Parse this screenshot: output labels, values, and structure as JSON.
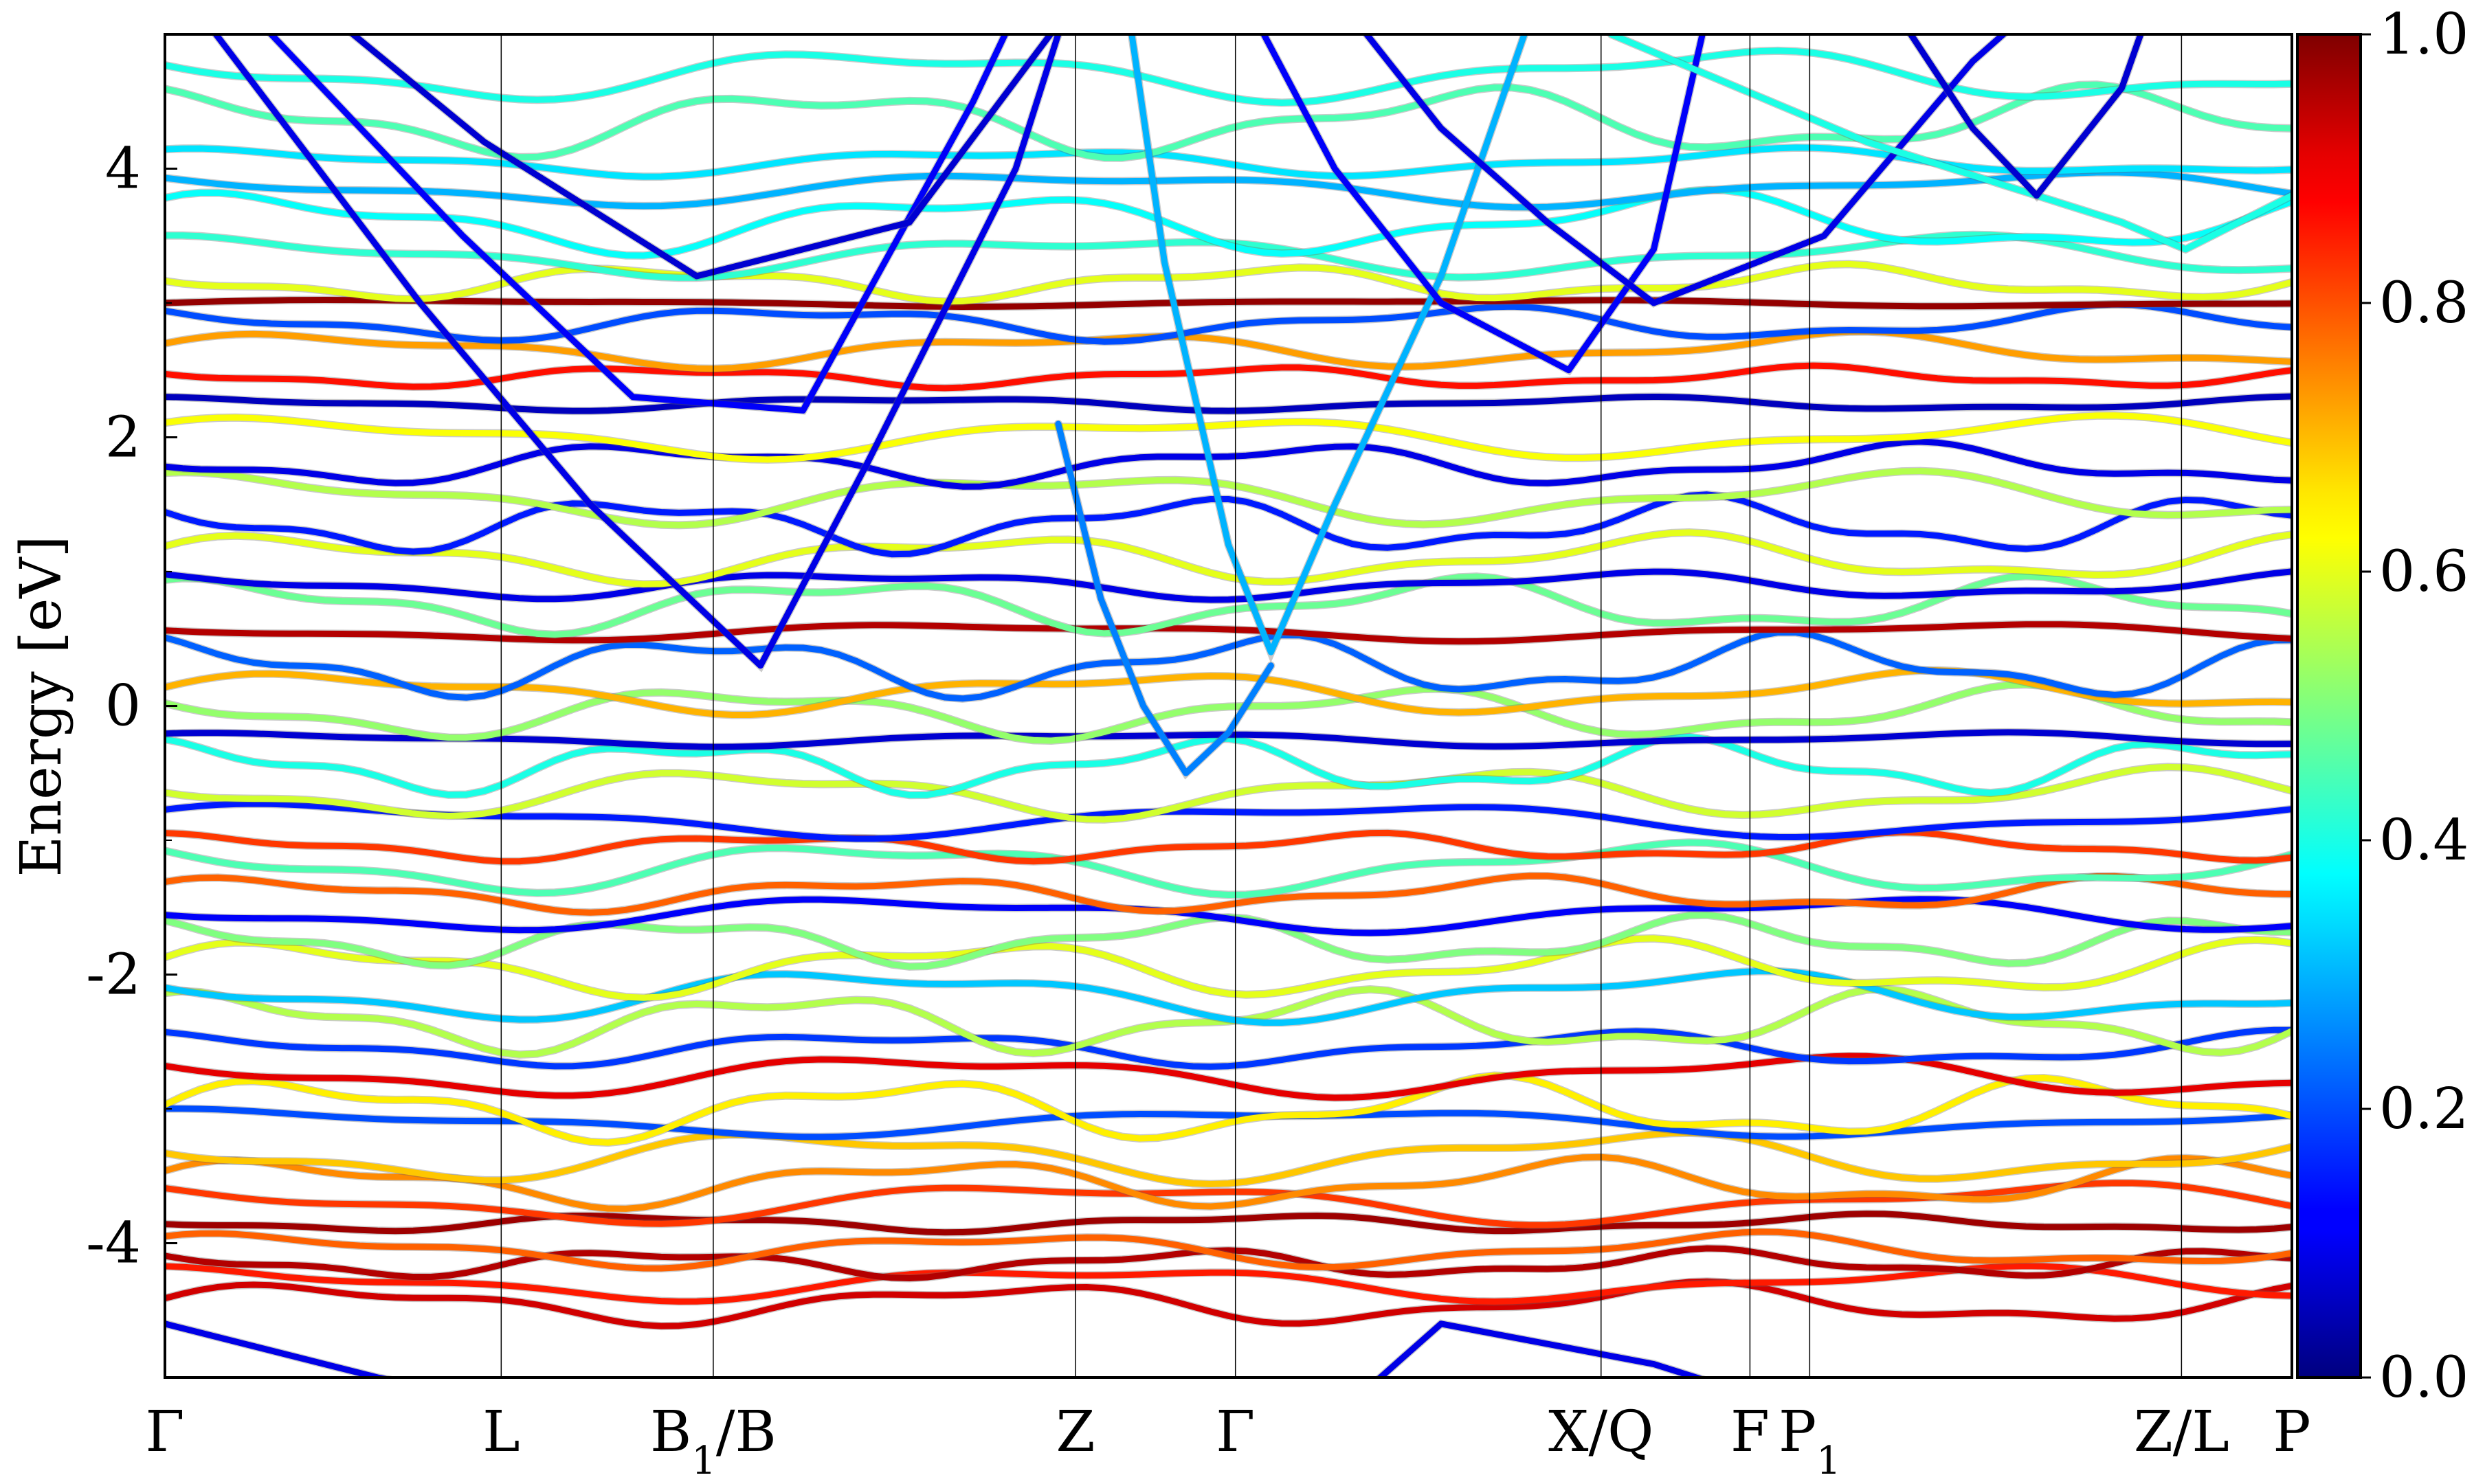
{
  "chart_data": {
    "type": "line",
    "title": "",
    "xlabel": "",
    "ylabel": "Energy [eV]",
    "ylim": [
      -5,
      5
    ],
    "yticks": [
      "-4",
      "-2",
      "0",
      "2",
      "4"
    ],
    "grid": false,
    "legend": "none",
    "high_symmetry_points": [
      {
        "label": "Γ",
        "sub": "",
        "tail": "",
        "k": 0.0
      },
      {
        "label": "L",
        "sub": "",
        "tail": "",
        "k": 0.1581
      },
      {
        "label": "B",
        "sub": "1",
        "tail": "/B",
        "k": 0.2578
      },
      {
        "label": "Z",
        "sub": "",
        "tail": "",
        "k": 0.4281
      },
      {
        "label": "Γ",
        "sub": "",
        "tail": "",
        "k": 0.5033
      },
      {
        "label": "X/Q",
        "sub": "",
        "tail": "",
        "k": 0.6752
      },
      {
        "label": "F",
        "sub": "",
        "tail": "",
        "k": 0.7452
      },
      {
        "label": "P",
        "sub": "1",
        "tail": "",
        "k": 0.7733
      },
      {
        "label": "Z/L",
        "sub": "",
        "tail": "",
        "k": 0.9481
      },
      {
        "label": "P",
        "sub": "",
        "tail": "",
        "k": 1.0
      }
    ],
    "colorbar": {
      "colormap": "jet",
      "range": [
        0.0,
        1.0
      ],
      "ticks": [
        "0.0",
        "0.2",
        "0.4",
        "0.6",
        "0.8",
        "1.0"
      ]
    },
    "series": [
      {
        "flat": true,
        "base": -4.45,
        "w": 0.92,
        "amp": 0.12,
        "freq": 3.1,
        "phase": 0.2
      },
      {
        "flat": true,
        "base": -4.3,
        "w": 0.85,
        "amp": 0.1,
        "freq": 2.4,
        "phase": 1.3
      },
      {
        "flat": true,
        "base": -4.15,
        "w": 0.95,
        "amp": 0.08,
        "freq": 4.0,
        "phase": 2.1
      },
      {
        "flat": true,
        "base": -4.05,
        "w": 0.78,
        "amp": 0.1,
        "freq": 2.9,
        "phase": 0.7
      },
      {
        "flat": true,
        "base": -3.85,
        "w": 0.97,
        "amp": 0.05,
        "freq": 3.5,
        "phase": 2.9
      },
      {
        "flat": true,
        "base": -3.7,
        "w": 0.82,
        "amp": 0.12,
        "freq": 2.2,
        "phase": 1.9
      },
      {
        "flat": true,
        "base": -3.55,
        "w": 0.74,
        "amp": 0.14,
        "freq": 3.3,
        "phase": 0.4
      },
      {
        "flat": true,
        "base": -3.35,
        "w": 0.68,
        "amp": 0.15,
        "freq": 2.7,
        "phase": 2.6
      },
      {
        "flat": true,
        "base": -3.1,
        "w": 0.2,
        "amp": 0.08,
        "freq": 2.0,
        "phase": 1.1
      },
      {
        "flat": true,
        "base": -3.0,
        "w": 0.64,
        "amp": 0.18,
        "freq": 3.6,
        "phase": 0.1
      },
      {
        "flat": true,
        "base": -2.75,
        "w": 0.9,
        "amp": 0.12,
        "freq": 2.5,
        "phase": 2.2
      },
      {
        "flat": true,
        "base": -2.55,
        "w": 0.18,
        "amp": 0.1,
        "freq": 3.0,
        "phase": 1.5
      },
      {
        "flat": true,
        "base": -2.35,
        "w": 0.55,
        "amp": 0.18,
        "freq": 3.8,
        "phase": 0.9
      },
      {
        "flat": true,
        "base": -2.15,
        "w": 0.32,
        "amp": 0.15,
        "freq": 2.6,
        "phase": 2.4
      },
      {
        "flat": true,
        "base": -1.95,
        "w": 0.6,
        "amp": 0.16,
        "freq": 3.2,
        "phase": 0.3
      },
      {
        "flat": true,
        "base": -1.75,
        "w": 0.5,
        "amp": 0.14,
        "freq": 4.1,
        "phase": 1.7
      },
      {
        "flat": true,
        "base": -1.55,
        "w": 0.12,
        "amp": 0.1,
        "freq": 2.3,
        "phase": 2.8
      },
      {
        "flat": true,
        "base": -1.4,
        "w": 0.78,
        "amp": 0.1,
        "freq": 3.4,
        "phase": 0.6
      },
      {
        "flat": true,
        "base": -1.2,
        "w": 0.45,
        "amp": 0.15,
        "freq": 2.8,
        "phase": 2.0
      },
      {
        "flat": true,
        "base": -1.05,
        "w": 0.82,
        "amp": 0.08,
        "freq": 3.7,
        "phase": 1.2
      },
      {
        "flat": true,
        "base": -0.85,
        "w": 0.15,
        "amp": 0.1,
        "freq": 2.1,
        "phase": 0.5
      },
      {
        "flat": true,
        "base": -0.65,
        "w": 0.58,
        "amp": 0.14,
        "freq": 3.0,
        "phase": 2.7
      },
      {
        "flat": true,
        "base": -0.45,
        "w": 0.4,
        "amp": 0.16,
        "freq": 4.2,
        "phase": 1.4
      },
      {
        "flat": true,
        "base": -0.25,
        "w": 0.08,
        "amp": 0.04,
        "freq": 2.5,
        "phase": 0.8
      },
      {
        "flat": true,
        "base": -0.05,
        "w": 0.52,
        "amp": 0.15,
        "freq": 3.3,
        "phase": 2.3
      },
      {
        "flat": true,
        "base": 0.1,
        "w": 0.7,
        "amp": 0.12,
        "freq": 2.7,
        "phase": 0.2
      },
      {
        "flat": true,
        "base": 0.3,
        "w": 0.22,
        "amp": 0.18,
        "freq": 3.9,
        "phase": 1.6
      },
      {
        "flat": true,
        "base": 0.55,
        "w": 0.95,
        "amp": 0.05,
        "freq": 2.2,
        "phase": 2.5
      },
      {
        "flat": true,
        "base": 0.75,
        "w": 0.48,
        "amp": 0.16,
        "freq": 3.5,
        "phase": 0.9
      },
      {
        "flat": true,
        "base": 0.9,
        "w": 0.1,
        "amp": 0.08,
        "freq": 2.9,
        "phase": 1.8
      },
      {
        "flat": true,
        "base": 1.1,
        "w": 0.6,
        "amp": 0.14,
        "freq": 3.1,
        "phase": 0.4
      },
      {
        "flat": true,
        "base": 1.35,
        "w": 0.15,
        "amp": 0.16,
        "freq": 4.0,
        "phase": 2.2
      },
      {
        "flat": true,
        "base": 1.55,
        "w": 0.55,
        "amp": 0.15,
        "freq": 2.6,
        "phase": 1.0
      },
      {
        "flat": true,
        "base": 1.8,
        "w": 0.1,
        "amp": 0.12,
        "freq": 3.4,
        "phase": 2.9
      },
      {
        "flat": true,
        "base": 2.0,
        "w": 0.62,
        "amp": 0.12,
        "freq": 2.4,
        "phase": 0.6
      },
      {
        "flat": true,
        "base": 2.25,
        "w": 0.06,
        "amp": 0.04,
        "freq": 3.0,
        "phase": 1.3
      },
      {
        "flat": true,
        "base": 2.45,
        "w": 0.86,
        "amp": 0.06,
        "freq": 3.7,
        "phase": 2.4
      },
      {
        "flat": true,
        "base": 2.65,
        "w": 0.72,
        "amp": 0.1,
        "freq": 2.8,
        "phase": 0.3
      },
      {
        "flat": true,
        "base": 2.85,
        "w": 0.2,
        "amp": 0.1,
        "freq": 3.2,
        "phase": 1.9
      },
      {
        "flat": true,
        "base": 3.0,
        "w": 0.98,
        "amp": 0.02,
        "freq": 2.0,
        "phase": 0.0
      },
      {
        "flat": true,
        "base": 3.15,
        "w": 0.6,
        "amp": 0.1,
        "freq": 3.6,
        "phase": 2.6
      },
      {
        "flat": true,
        "base": 3.35,
        "w": 0.42,
        "amp": 0.12,
        "freq": 2.5,
        "phase": 1.1
      },
      {
        "flat": true,
        "base": 3.6,
        "w": 0.38,
        "amp": 0.18,
        "freq": 3.0,
        "phase": 0.7
      },
      {
        "flat": true,
        "base": 3.85,
        "w": 0.3,
        "amp": 0.1,
        "freq": 2.2,
        "phase": 2.0
      },
      {
        "flat": true,
        "base": 4.05,
        "w": 0.35,
        "amp": 0.08,
        "freq": 2.8,
        "phase": 0.9
      },
      {
        "flat": true,
        "base": 4.35,
        "w": 0.45,
        "amp": 0.2,
        "freq": 3.3,
        "phase": 1.5
      },
      {
        "flat": true,
        "base": 4.7,
        "w": 0.4,
        "amp": 0.15,
        "freq": 2.6,
        "phase": 2.3
      },
      {
        "flat": false,
        "w": 0.1,
        "points": [
          [
            0.0,
            5.5
          ],
          [
            0.12,
            3.0
          ],
          [
            0.2,
            1.5
          ],
          [
            0.28,
            0.3
          ],
          [
            0.33,
            1.8
          ],
          [
            0.4,
            4.0
          ],
          [
            0.43,
            5.5
          ]
        ]
      },
      {
        "flat": false,
        "w": 0.12,
        "points": [
          [
            0.02,
            5.5
          ],
          [
            0.14,
            3.5
          ],
          [
            0.22,
            2.3
          ],
          [
            0.3,
            2.2
          ],
          [
            0.38,
            4.5
          ],
          [
            0.41,
            5.5
          ]
        ]
      },
      {
        "flat": false,
        "w": 0.08,
        "points": [
          [
            0.05,
            5.5
          ],
          [
            0.15,
            4.2
          ],
          [
            0.25,
            3.2
          ],
          [
            0.35,
            3.6
          ],
          [
            0.44,
            5.5
          ]
        ]
      },
      {
        "flat": false,
        "w": 0.3,
        "points": [
          [
            0.45,
            5.5
          ],
          [
            0.47,
            3.3
          ],
          [
            0.5,
            1.2
          ],
          [
            0.52,
            0.4
          ],
          [
            0.55,
            1.5
          ],
          [
            0.6,
            3.2
          ],
          [
            0.65,
            5.5
          ]
        ]
      },
      {
        "flat": false,
        "w": 0.12,
        "points": [
          [
            0.5,
            5.5
          ],
          [
            0.55,
            4.0
          ],
          [
            0.6,
            3.0
          ],
          [
            0.66,
            2.5
          ],
          [
            0.7,
            3.4
          ],
          [
            0.73,
            5.5
          ]
        ]
      },
      {
        "flat": false,
        "w": 0.1,
        "points": [
          [
            0.54,
            5.5
          ],
          [
            0.6,
            4.3
          ],
          [
            0.65,
            3.6
          ],
          [
            0.7,
            3.0
          ],
          [
            0.78,
            3.5
          ],
          [
            0.85,
            4.8
          ],
          [
            0.9,
            5.5
          ]
        ]
      },
      {
        "flat": false,
        "w": 0.4,
        "points": [
          [
            0.68,
            5.0
          ],
          [
            0.74,
            4.6
          ],
          [
            0.8,
            4.2
          ],
          [
            0.86,
            3.9
          ],
          [
            0.92,
            3.6
          ],
          [
            0.95,
            3.4
          ],
          [
            1.0,
            3.8
          ]
        ]
      },
      {
        "flat": false,
        "w": 0.08,
        "points": [
          [
            0.8,
            5.5
          ],
          [
            0.85,
            4.3
          ],
          [
            0.88,
            3.8
          ],
          [
            0.92,
            4.6
          ],
          [
            0.94,
            5.5
          ]
        ]
      },
      {
        "flat": false,
        "w": 0.25,
        "points": [
          [
            0.42,
            2.1
          ],
          [
            0.44,
            0.8
          ],
          [
            0.46,
            0.0
          ],
          [
            0.48,
            -0.5
          ],
          [
            0.5,
            -0.2
          ],
          [
            0.52,
            0.3
          ]
        ]
      },
      {
        "flat": false,
        "w": 0.1,
        "points": [
          [
            0.0,
            -4.6
          ],
          [
            0.1,
            -5.0
          ],
          [
            0.2,
            -5.3
          ]
        ]
      },
      {
        "flat": false,
        "w": 0.1,
        "points": [
          [
            0.55,
            -5.3
          ],
          [
            0.6,
            -4.6
          ],
          [
            0.7,
            -4.9
          ],
          [
            0.8,
            -5.4
          ]
        ]
      }
    ]
  }
}
